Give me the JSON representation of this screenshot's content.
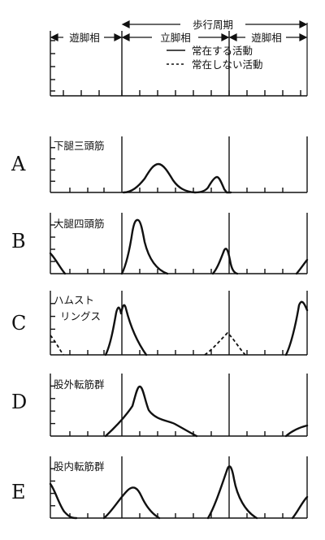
{
  "header": {
    "cycle_label": "歩行周期",
    "swing_label": "遊脚相",
    "stance_label": "立脚相",
    "legend_solid": "常在する活動",
    "legend_dashed": "常在しない活動"
  },
  "rows": [
    {
      "letter": "A",
      "muscle": [
        "下腿三頭筋"
      ]
    },
    {
      "letter": "B",
      "muscle": [
        "大腿四頭筋"
      ]
    },
    {
      "letter": "C",
      "muscle": [
        "ハムスト",
        "リングス"
      ]
    },
    {
      "letter": "D",
      "muscle": [
        "股外転筋群"
      ]
    },
    {
      "letter": "E",
      "muscle": [
        "股内転筋群"
      ]
    }
  ],
  "colors": {
    "ink": "#111111",
    "background": "#ffffff"
  },
  "line_styles": {
    "solid": "常在する活動",
    "dashed": "常在しない活動"
  }
}
